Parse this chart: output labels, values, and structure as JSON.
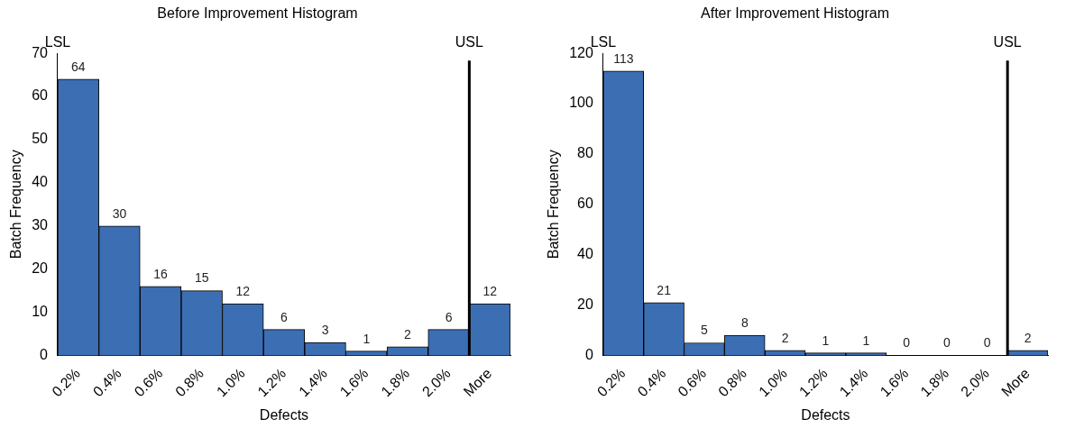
{
  "chart_data": [
    {
      "type": "bar",
      "title": "Before Improvement Histogram",
      "xlabel": "Defects",
      "ylabel": "Batch Frequency",
      "categories": [
        "0.2%",
        "0.4%",
        "0.6%",
        "0.8%",
        "1.0%",
        "1.2%",
        "1.4%",
        "1.6%",
        "1.8%",
        "2.0%",
        "More"
      ],
      "values": [
        64,
        30,
        16,
        15,
        12,
        6,
        3,
        1,
        2,
        6,
        12
      ],
      "color": "#3c6eb4",
      "ylim": [
        0,
        70
      ],
      "yticks": [
        0,
        10,
        20,
        30,
        40,
        50,
        60,
        70
      ],
      "grid": false,
      "legend": false,
      "data_labels": true,
      "annotations": [
        "LSL"
      ],
      "ref_lines": [
        {
          "axis": "x",
          "value": "More",
          "label": "USL",
          "color": "#000000"
        }
      ]
    },
    {
      "type": "bar",
      "title": "After Improvement Histogram",
      "xlabel": "Defects",
      "ylabel": "Batch Frequency",
      "categories": [
        "0.2%",
        "0.4%",
        "0.6%",
        "0.8%",
        "1.0%",
        "1.2%",
        "1.4%",
        "1.6%",
        "1.8%",
        "2.0%",
        "More"
      ],
      "values": [
        113,
        21,
        5,
        8,
        2,
        1,
        1,
        0,
        0,
        0,
        2
      ],
      "color": "#3c6eb4",
      "ylim": [
        0,
        120
      ],
      "yticks": [
        0,
        20,
        40,
        60,
        80,
        100,
        120
      ],
      "grid": false,
      "legend": false,
      "data_labels": true,
      "annotations": [
        "LSL"
      ],
      "ref_lines": [
        {
          "axis": "x",
          "value": "More",
          "label": "USL",
          "color": "#000000"
        }
      ]
    }
  ]
}
